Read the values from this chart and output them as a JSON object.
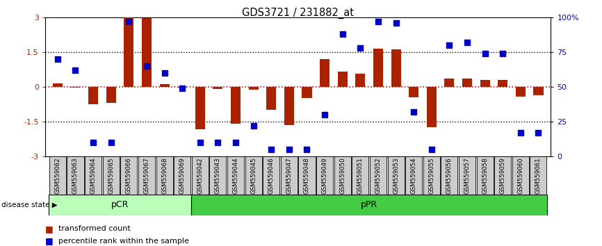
{
  "title": "GDS3721 / 231882_at",
  "samples": [
    "GSM559062",
    "GSM559063",
    "GSM559064",
    "GSM559065",
    "GSM559066",
    "GSM559067",
    "GSM559068",
    "GSM559069",
    "GSM559042",
    "GSM559043",
    "GSM559044",
    "GSM559045",
    "GSM559046",
    "GSM559047",
    "GSM559048",
    "GSM559049",
    "GSM559050",
    "GSM559051",
    "GSM559052",
    "GSM559053",
    "GSM559054",
    "GSM559055",
    "GSM559056",
    "GSM559057",
    "GSM559058",
    "GSM559059",
    "GSM559060",
    "GSM559061"
  ],
  "transformed_count": [
    0.15,
    -0.05,
    -0.75,
    -0.7,
    3.0,
    2.95,
    0.1,
    -0.05,
    -1.85,
    -0.1,
    -1.6,
    -0.12,
    -1.0,
    -1.65,
    -0.5,
    1.2,
    0.65,
    0.55,
    1.65,
    1.6,
    -0.45,
    -1.75,
    0.35,
    0.35,
    0.3,
    0.28,
    -0.42,
    -0.38
  ],
  "percentile_rank": [
    70,
    62,
    10,
    10,
    97,
    65,
    60,
    49,
    10,
    10,
    10,
    22,
    5,
    5,
    5,
    30,
    88,
    78,
    97,
    96,
    32,
    5,
    80,
    82,
    74,
    74,
    17,
    17
  ],
  "pCR_count": 8,
  "pPR_count": 20,
  "bar_color": "#AA2200",
  "dot_color": "#0000CC",
  "pCR_color": "#BBFFBB",
  "pPR_color": "#44CC44",
  "ylim": [
    -3,
    3
  ],
  "dotted_line_values": [
    1.5,
    -1.5
  ],
  "zero_line_color": "#CC0000",
  "black_dot_line_color": "#000000",
  "label_transformed": "transformed count",
  "label_percentile": "percentile rank within the sample",
  "disease_state_label": "disease state",
  "right_yticks": [
    0,
    25,
    50,
    75,
    100
  ],
  "right_yticklabels": [
    "0",
    "25",
    "50",
    "75",
    "100%"
  ],
  "left_yticks": [
    -3,
    -1.5,
    0,
    1.5,
    3
  ],
  "left_yticklabels": [
    "-3",
    "-1.5",
    "0",
    "1.5",
    "3"
  ]
}
